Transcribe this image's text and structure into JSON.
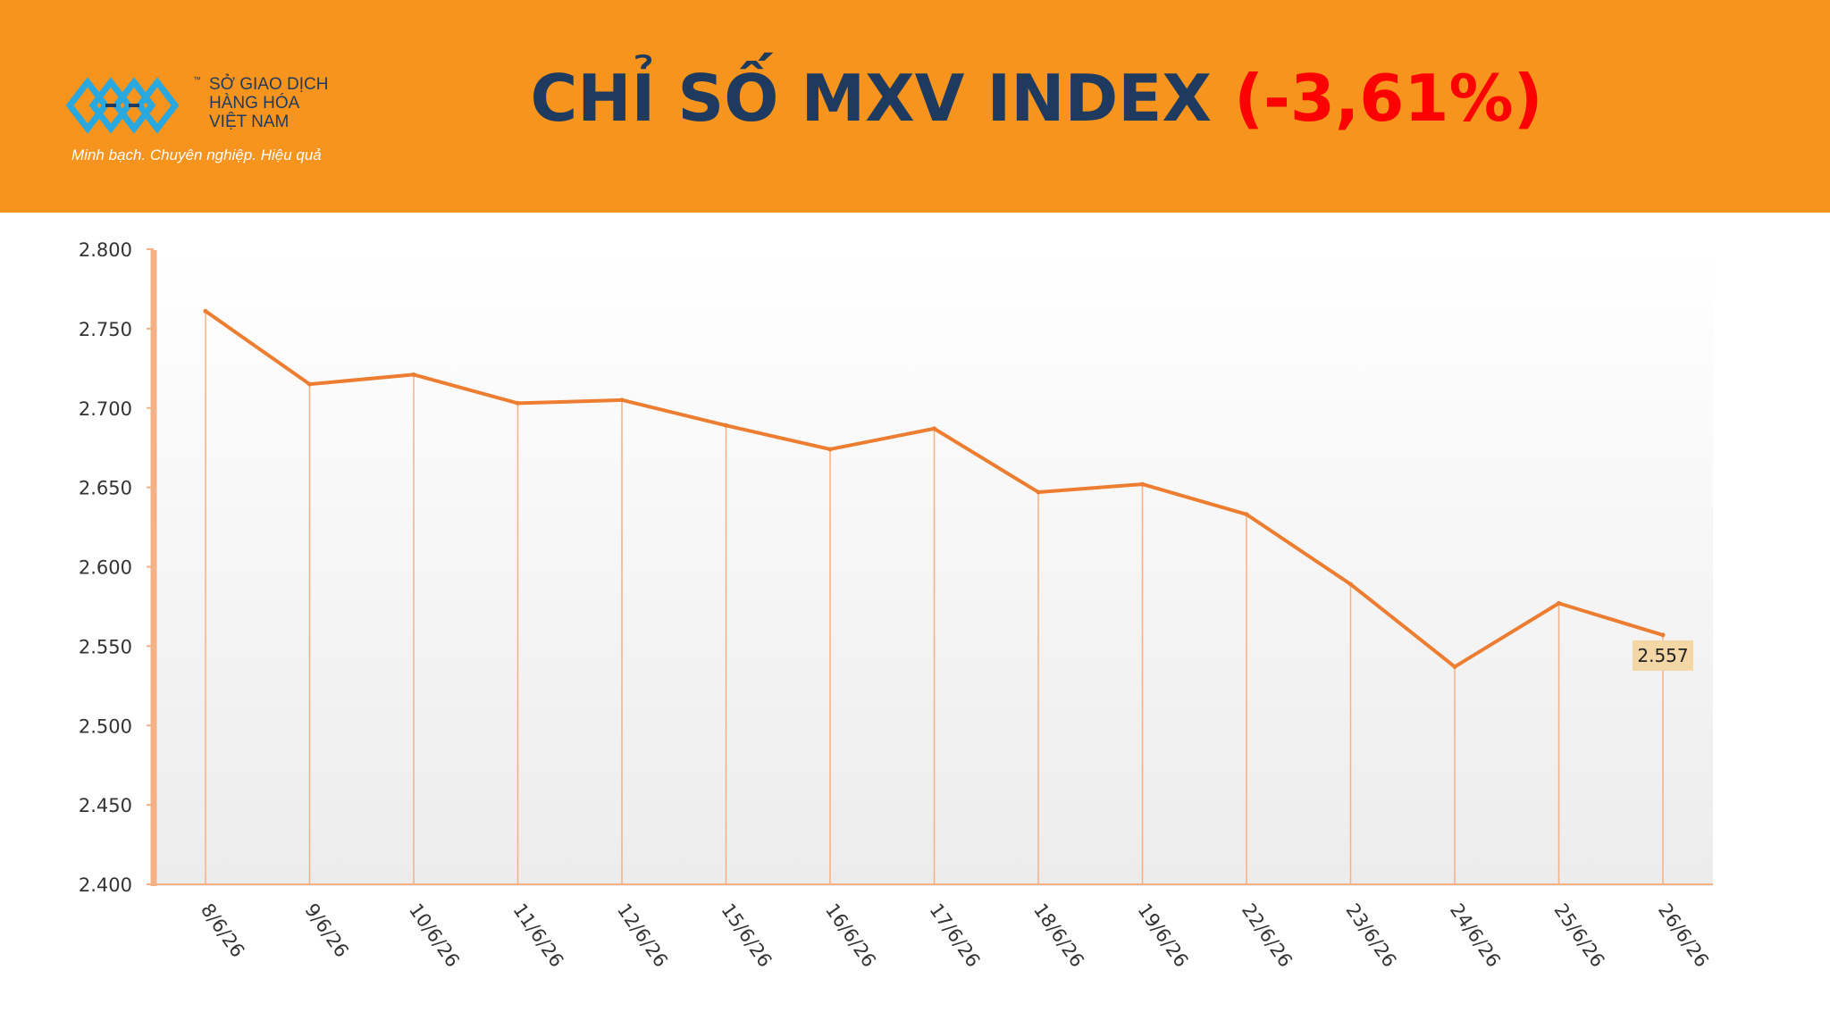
{
  "header": {
    "title": "CHỈ SỐ MXV INDEX",
    "change": "(-3,61%)",
    "background_color": "#f7941d",
    "title_color": "#1f3a5f",
    "change_color": "#ff0000"
  },
  "logo": {
    "tm": "™",
    "line1": "SỞ GIAO DỊCH",
    "line2": "HÀNG HÓA",
    "line3": "VIỆT NAM",
    "slogan": "Minh bạch. Chuyên nghiệp. Hiệu quả",
    "icon": "mxv-logo-icon"
  },
  "chart_data": {
    "type": "line",
    "categories": [
      "8/6/26",
      "9/6/26",
      "10/6/26",
      "11/6/26",
      "12/6/26",
      "15/6/26",
      "16/6/26",
      "17/6/26",
      "18/6/26",
      "19/6/26",
      "22/6/26",
      "23/6/26",
      "24/6/26",
      "25/6/26",
      "26/6/26"
    ],
    "values": [
      2761,
      2715,
      2721,
      2703,
      2705,
      2689,
      2674,
      2687,
      2647,
      2652,
      2633,
      2589,
      2537,
      2577,
      2557
    ],
    "ylim": [
      2400,
      2800
    ],
    "yticks": [
      "2.800",
      "2.750",
      "2.700",
      "2.650",
      "2.600",
      "2.550",
      "2.500",
      "2.450",
      "2.400"
    ],
    "ytick_values": [
      2800,
      2750,
      2700,
      2650,
      2600,
      2550,
      2500,
      2450,
      2400
    ],
    "last_label": "2.557",
    "line_color": "#ed7d31",
    "drop_line_color": "#f4b183",
    "label_bg_color": "#f4d7a6",
    "grid": false,
    "drop_lines": true
  }
}
